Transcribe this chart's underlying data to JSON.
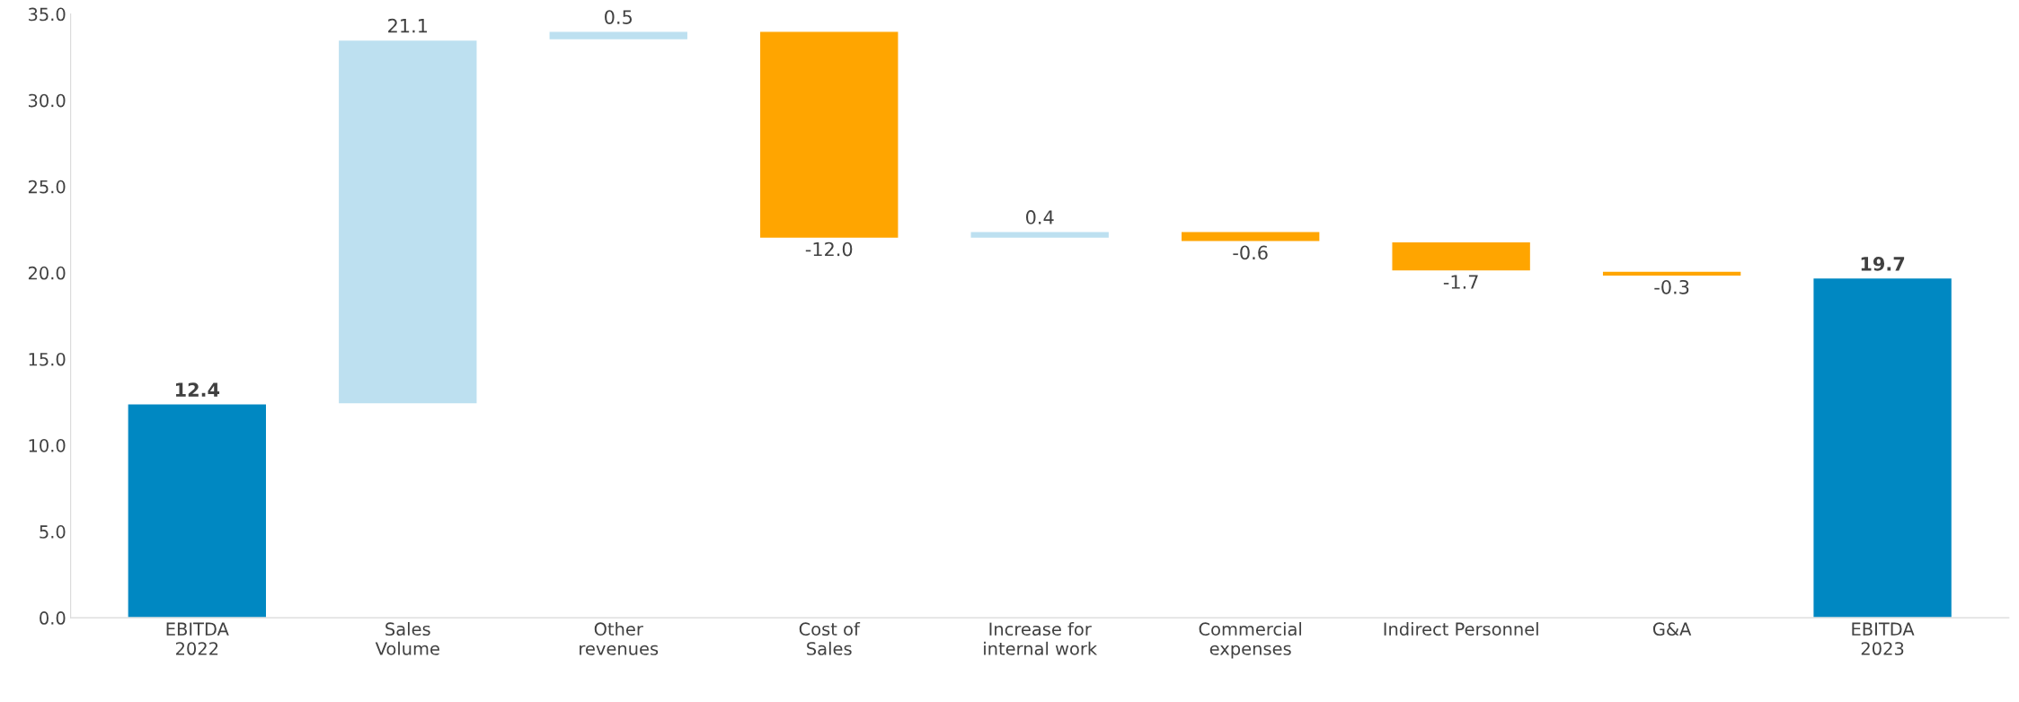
{
  "chart_data": {
    "type": "bar",
    "categories": [
      "EBITDA\n2022",
      "Sales\nVolume",
      "Other\nrevenues",
      "Cost of\nSales",
      "Increase for\ninternal work",
      "Commercial\nexpenses",
      "Indirect Personnel",
      "G&A",
      "EBITDA\n2023"
    ],
    "values": [
      12.4,
      21.1,
      0.5,
      -12.0,
      0.4,
      -0.6,
      -1.7,
      -0.3,
      19.7
    ],
    "base": [
      0,
      12.4,
      33.5,
      34.0,
      22.0,
      22.4,
      21.8,
      20.1,
      0
    ],
    "colors": [
      "#0088c2",
      "#bde0f0",
      "#bde0f0",
      "#ffa500",
      "#bde0f0",
      "#ffa500",
      "#ffa500",
      "#ffa500",
      "#0088c2"
    ],
    "value_labels": [
      "12.4",
      "21.1",
      "0.5",
      "-12.0",
      "0.4",
      "-0.6",
      "-1.7",
      "-0.3",
      "19.7"
    ],
    "ylim": [
      0,
      35
    ],
    "yticks": [
      {
        "value": 0,
        "label": "0.0"
      },
      {
        "value": 5,
        "label": "5.0"
      },
      {
        "value": 10,
        "label": "10.0"
      },
      {
        "value": 15,
        "label": "15.0"
      },
      {
        "value": 20,
        "label": "20.0"
      },
      {
        "value": 25,
        "label": "25.0"
      },
      {
        "value": 30,
        "label": "30.0"
      },
      {
        "value": 35,
        "label": "35.0"
      }
    ],
    "grid": false,
    "legend": false
  }
}
